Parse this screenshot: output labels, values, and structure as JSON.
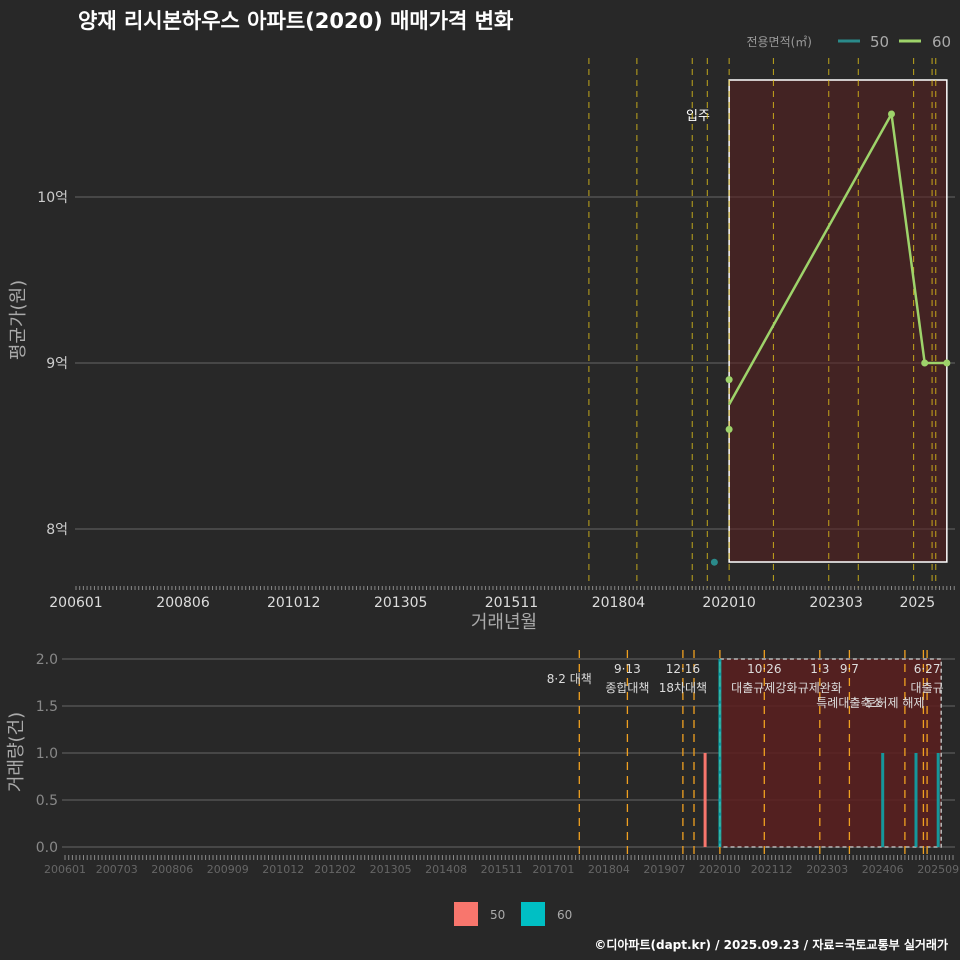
{
  "title": "양재 리시본하우스 아파트(2020) 매매가격 변화",
  "footer": "©디아파트(dapt.kr) / 2025.09.23 / 자료=국토교통부 실거래가",
  "colors": {
    "s50": "#2a8a8a",
    "s60": "#9ed36a",
    "bar50": "#f8766d",
    "bar60": "#00bfc4",
    "vline": "#e6c619",
    "vline2": "#f0a020",
    "shade": "#5a1f1f"
  },
  "chart_data": [
    {
      "type": "line",
      "title": "양재 리시본하우스 아파트(2020) 매매가격 변화",
      "xlabel": "거래년월",
      "ylabel": "평균가(원)",
      "legend_title": "전용면적(㎡)",
      "legend_position": "top-right",
      "x_ticks": [
        "200601",
        "200806",
        "201012",
        "201305",
        "201511",
        "201804",
        "202010",
        "202303",
        "2025"
      ],
      "y_ticks": [
        {
          "v": 8,
          "label": "8억"
        },
        {
          "v": 9,
          "label": "9억"
        },
        {
          "v": 10,
          "label": "10억"
        }
      ],
      "ylim": [
        7.7,
        10.85
      ],
      "series": [
        {
          "name": "50",
          "points": [
            {
              "x": "202006",
              "y": 7.8
            }
          ]
        },
        {
          "name": "60",
          "points": [
            {
              "x": "202010",
              "y": 8.9
            },
            {
              "x": "202010",
              "y": 8.6
            },
            {
              "x": "202406",
              "y": 10.5
            },
            {
              "x": "202503",
              "y": 9.0
            },
            {
              "x": "202509",
              "y": 9.0
            }
          ],
          "line": [
            {
              "x": "202010",
              "y": 8.75
            },
            {
              "x": "202406",
              "y": 10.5
            },
            {
              "x": "202503",
              "y": 9.0
            },
            {
              "x": "202509",
              "y": 9.0
            }
          ]
        }
      ],
      "annotation": "입주",
      "vlines": [
        "201708",
        "201809",
        "201912",
        "202003",
        "202010",
        "202110",
        "202301",
        "202309",
        "202412",
        "202505",
        "202506"
      ],
      "shade": [
        "202010",
        "202509"
      ]
    },
    {
      "type": "bar",
      "ylabel": "거래량(건)",
      "ylim": [
        0,
        2
      ],
      "y_ticks": [
        "0.0",
        "0.5",
        "1.0",
        "1.5",
        "2.0"
      ],
      "x_ticks": [
        "200601",
        "200703",
        "200806",
        "200909",
        "201012",
        "201202",
        "201305",
        "201408",
        "201511",
        "201701",
        "201804",
        "201907",
        "202010",
        "202112",
        "202303",
        "202406",
        "202509"
      ],
      "bars": [
        {
          "x": "202006",
          "series": "50",
          "value": 1
        },
        {
          "x": "202010",
          "series": "60",
          "value": 2
        },
        {
          "x": "202406",
          "series": "60",
          "value": 1
        },
        {
          "x": "202503",
          "series": "60",
          "value": 1
        },
        {
          "x": "202509",
          "series": "60",
          "value": 1
        }
      ],
      "legend": [
        "50",
        "60"
      ],
      "events": [
        {
          "x": "201708",
          "label1": "",
          "label2": "8·2 대책"
        },
        {
          "x": "201809",
          "label1": "9·13",
          "label2": "종합대책"
        },
        {
          "x": "201912",
          "label1": "12·16",
          "label2": "18차대책"
        },
        {
          "x": "202010",
          "label1": "",
          "label2": ""
        },
        {
          "x": "202110",
          "label1": "10·26",
          "label2": "대출규제강화"
        },
        {
          "x": "202301",
          "label1": "1·3",
          "label2": "규제완화"
        },
        {
          "x": "202309",
          "label1": "9·7",
          "label2": "특례대출축소"
        },
        {
          "x": "202412",
          "label1": "",
          "label2": "토허제 해제"
        },
        {
          "x": "202506",
          "label1": "6·27",
          "label2": "대출규"
        }
      ]
    }
  ]
}
